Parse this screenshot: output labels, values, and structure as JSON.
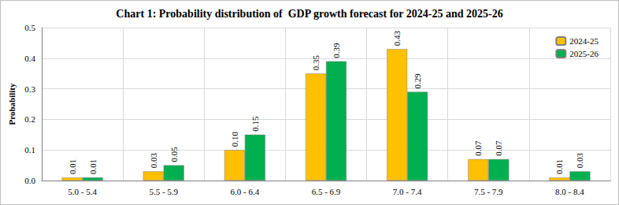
{
  "chart_data": {
    "type": "bar",
    "title": "Chart 1: Probability distribution of  GDP growth forecast for 2024-25 and 2025-26",
    "y_label": "Probability",
    "categories": [
      "5.0 - 5.4",
      "5.5 - 5.9",
      "6.0 - 6.4",
      "6.5 - 6.9",
      "7.0 - 7.4",
      "7.5 - 7.9",
      "8.0 - 8.4"
    ],
    "series": [
      {
        "name": "2024-25",
        "color": "#FFC000",
        "values": [
          0.01,
          0.03,
          0.1,
          0.35,
          0.43,
          0.07,
          0.01
        ],
        "value_labels": [
          "0.01",
          "0.03",
          "0.10",
          "0.35",
          "0.43",
          "0.07",
          "0.01"
        ]
      },
      {
        "name": "2025-26",
        "color": "#00B050",
        "values": [
          0.01,
          0.05,
          0.15,
          0.39,
          0.29,
          0.07,
          0.03
        ],
        "value_labels": [
          "0.01",
          "0.05",
          "0.15",
          "0.39",
          "0.29",
          "0.07",
          "0.03"
        ]
      }
    ],
    "ylim": [
      0,
      0.5
    ],
    "yticks": [
      {
        "value": 0,
        "label": "0.0"
      },
      0.1,
      0.2,
      0.3,
      0.4,
      0.5
    ],
    "grid": true,
    "legend": "top-right",
    "data_labels": true
  }
}
